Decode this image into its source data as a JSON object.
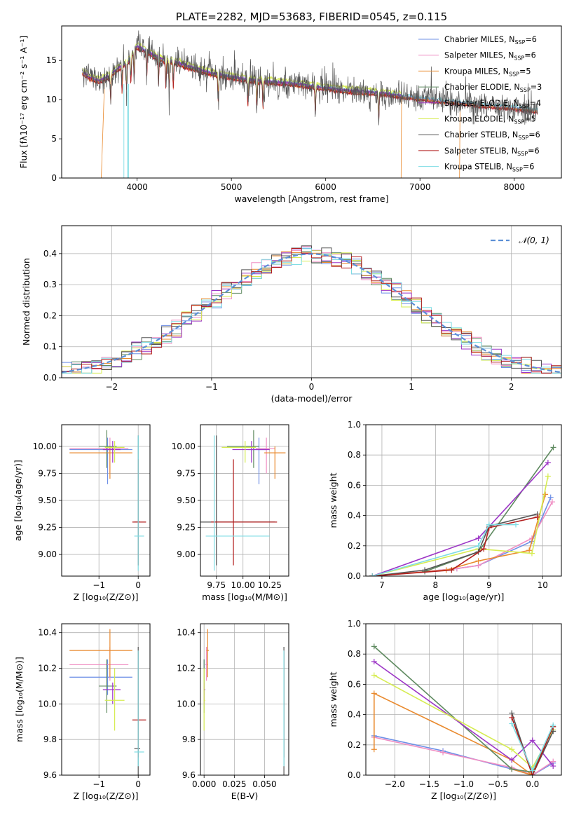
{
  "palette": {
    "Chabrier MILES": "#6d8fe6",
    "Salpeter MILES": "#f08ec3",
    "Kroupa MILES": "#e98a2e",
    "Chabrier ELODIE": "#5f8a60",
    "Salpeter ELODIE": "#9c35c6",
    "Kroupa ELODIE": "#d6ec52",
    "Chabrier STELIB": "#555555",
    "Salpeter STELIB": "#b21e1e",
    "Kroupa STELIB": "#7fdde4"
  },
  "chart_data": [
    {
      "id": "spectrum",
      "type": "line",
      "title": "PLATE=2282, MJD=53683, FIBERID=0545, z=0.115",
      "xlabel": "wavelength [Angstrom, rest frame]",
      "ylabel": "Flux [fλ10⁻¹⁷ erg cm⁻² s⁻¹ A⁻¹]",
      "xlim": [
        3200,
        8500
      ],
      "ylim": [
        0,
        19.4
      ],
      "xticks": [
        "4000",
        "5000",
        "6000",
        "7000",
        "8000"
      ],
      "yticks": [
        "0",
        "5",
        "10",
        "15"
      ],
      "grid": false,
      "legend_position": "upper right",
      "continuum": [
        [
          3420,
          13.3
        ],
        [
          3500,
          12.6
        ],
        [
          3600,
          12.2
        ],
        [
          3700,
          12.8
        ],
        [
          3800,
          13.8
        ],
        [
          3900,
          14.6
        ],
        [
          4000,
          16.6
        ],
        [
          4100,
          16.0
        ],
        [
          4200,
          15.3
        ],
        [
          4300,
          14.8
        ],
        [
          4400,
          14.6
        ],
        [
          4500,
          14.2
        ],
        [
          4600,
          13.8
        ],
        [
          4700,
          13.5
        ],
        [
          4800,
          13.1
        ],
        [
          4900,
          12.9
        ],
        [
          5000,
          12.7
        ],
        [
          5100,
          12.5
        ],
        [
          5200,
          12.3
        ],
        [
          5300,
          12.2
        ],
        [
          5400,
          12.1
        ],
        [
          5500,
          12.0
        ],
        [
          5600,
          11.9
        ],
        [
          5800,
          11.6
        ],
        [
          6000,
          11.3
        ],
        [
          6200,
          11.0
        ],
        [
          6400,
          10.8
        ],
        [
          6600,
          10.6
        ],
        [
          6800,
          10.3
        ],
        [
          7000,
          10.0
        ],
        [
          7200,
          9.7
        ],
        [
          7400,
          9.5
        ],
        [
          7600,
          9.2
        ],
        [
          7800,
          9.0
        ],
        [
          8000,
          8.8
        ],
        [
          8200,
          8.5
        ],
        [
          8250,
          8.4
        ]
      ],
      "series": [
        {
          "name": "Chabrier MILES, N_SSP=6",
          "legend": [
            "Chabrier MILES, N",
            "SSP",
            "=6"
          ],
          "offset": 0.1,
          "start": 3420,
          "end": 8250
        },
        {
          "name": "Salpeter MILES, N_SSP=6",
          "legend": [
            "Salpeter MILES, N",
            "SSP",
            "=6"
          ],
          "offset": -0.05,
          "start": 3420,
          "end": 8250
        },
        {
          "name": "Kroupa MILES, N_SSP=5",
          "legend": [
            "Kroupa MILES, N",
            "SSP",
            "=5"
          ],
          "offset": 0.0,
          "start": 3420,
          "end": 8250
        },
        {
          "name": "Chabrier ELODIE, N_SSP=3",
          "legend": [
            "Chabrier ELODIE, N",
            "SSP",
            "=3"
          ],
          "offset": 0.2,
          "start": 3420,
          "end": 6800
        },
        {
          "name": "Salpeter ELODIE, N_SSP=4",
          "legend": [
            "Salpeter ELODIE, N",
            "SSP",
            "=4"
          ],
          "offset": 0.25,
          "start": 3420,
          "end": 6800
        },
        {
          "name": "Kroupa ELODIE, N_SSP=5",
          "legend": [
            "Kroupa ELODIE, N",
            "SSP",
            "=5"
          ],
          "offset": 0.6,
          "start": 3420,
          "end": 6800
        },
        {
          "name": "Chabrier STELIB, N_SSP=6",
          "legend": [
            "Chabrier STELIB, N",
            "SSP",
            "=6"
          ],
          "offset": 0.15,
          "start": 3420,
          "end": 8250
        },
        {
          "name": "Salpeter STELIB, N_SSP=6",
          "legend": [
            "Salpeter STELIB, N",
            "SSP",
            "=6"
          ],
          "offset": -0.1,
          "start": 3420,
          "end": 8250
        },
        {
          "name": "Kroupa STELIB, N_SSP=6",
          "legend": [
            "Kroupa STELIB, N",
            "SSP",
            "=6"
          ],
          "offset": 0.3,
          "start": 3420,
          "end": 8250
        }
      ]
    },
    {
      "id": "residuals",
      "type": "line",
      "xlabel": "(data-model)/error",
      "ylabel": "Normed distribution",
      "xlim": [
        -2.5,
        2.5
      ],
      "ylim": [
        0,
        0.49
      ],
      "xticks": [
        "−2",
        "−1",
        "0",
        "1",
        "2"
      ],
      "yticks": [
        "0.0",
        "0.1",
        "0.2",
        "0.3",
        "0.4"
      ],
      "grid": true,
      "legend_position": "upper right",
      "legend_label": "𝒩(0, 1)",
      "bin_width": 0.1,
      "reference_curve": "N(0,1)"
    },
    {
      "id": "age-vs-Z",
      "type": "scatter",
      "xlabel": "Z [log₁₀(Z/Z⊙)]",
      "ylabel": "age  [log₁₀(age/yr)]",
      "xlim": [
        -1.95,
        0.3
      ],
      "ylim": [
        8.8,
        10.2
      ],
      "xticks": [
        "−1",
        "0"
      ],
      "yticks": [
        "9.00",
        "9.25",
        "9.50",
        "9.75",
        "10.00"
      ],
      "grid": true
    },
    {
      "id": "age-vs-mass",
      "type": "scatter",
      "xlabel": "mass [log₁₀(M/M⊙)]",
      "xlim": [
        9.6,
        10.43
      ],
      "ylim": [
        8.8,
        10.2
      ],
      "xticks": [
        "9.75",
        "10.00",
        "10.25"
      ],
      "yticks": [
        "9.00",
        "9.25",
        "9.50",
        "9.75",
        "10.00"
      ],
      "grid": true
    },
    {
      "id": "weight-vs-age",
      "type": "line",
      "xlabel": "age  [log₁₀(age/yr)]",
      "ylabel": "mass weight",
      "xlim": [
        6.7,
        10.35
      ],
      "ylim": [
        0,
        1.0
      ],
      "xticks": [
        "7",
        "8",
        "9",
        "10"
      ],
      "yticks": [
        "0.0",
        "0.2",
        "0.4",
        "0.6",
        "0.8",
        "1.0"
      ],
      "grid": true
    },
    {
      "id": "mass-vs-Z",
      "type": "scatter",
      "xlabel": "Z [log₁₀(Z/Z⊙)]",
      "ylabel": "mass [log₁₀(M/M⊙)]",
      "xlim": [
        -1.95,
        0.3
      ],
      "ylim": [
        9.6,
        10.45
      ],
      "xticks": [
        "−1",
        "0"
      ],
      "yticks": [
        "9.6",
        "9.8",
        "10.0",
        "10.2",
        "10.4"
      ],
      "grid": true
    },
    {
      "id": "mass-vs-EBV",
      "type": "scatter",
      "xlabel": "E(B-V)",
      "xlim": [
        -0.003,
        0.07
      ],
      "ylim": [
        9.6,
        10.45
      ],
      "xticks": [
        "0.000",
        "0.025",
        "0.050"
      ],
      "yticks": [
        "9.6",
        "9.8",
        "10.0",
        "10.2",
        "10.4"
      ],
      "grid": true
    },
    {
      "id": "weight-vs-Z",
      "type": "line",
      "xlabel": "Z [log₁₀(Z/Z⊙)]",
      "ylabel": "mass weight",
      "xlim": [
        -2.42,
        0.42
      ],
      "ylim": [
        0,
        1.0
      ],
      "xticks": [
        "−2.0",
        "−1.5",
        "−1.0",
        "−0.5",
        "0.0"
      ],
      "yticks": [
        "0.0",
        "0.2",
        "0.4",
        "0.6",
        "0.8",
        "1.0"
      ],
      "grid": true
    }
  ],
  "fits": [
    {
      "model": "Chabrier MILES",
      "Z": -0.78,
      "Zlo": -1.75,
      "Zhi": -0.15,
      "age": 9.97,
      "agelo": 9.65,
      "agehi": 10.08,
      "mass": 10.15,
      "masslo": 10.05,
      "masshi": 10.22,
      "mlo": 10.05,
      "mhi": 10.25,
      "ebv": 0.0,
      "ebvlo": 0.0,
      "ebvhi": 0.0,
      "ages": [
        6.82,
        7.8,
        8.4,
        8.8,
        9.8,
        10.15
      ],
      "weights": [
        0.0,
        0.03,
        0.05,
        0.07,
        0.23,
        0.52
      ],
      "zw": [
        [
          -2.3,
          0.26
        ],
        [
          -1.3,
          0.16
        ],
        [
          -0.3,
          0.04
        ],
        [
          0.0,
          0.0
        ],
        [
          0.3,
          0.08
        ]
      ]
    },
    {
      "model": "Salpeter MILES",
      "Z": -0.72,
      "Zlo": -1.75,
      "Zhi": -0.25,
      "age": 9.98,
      "agelo": 9.75,
      "agehi": 10.08,
      "mass": 10.22,
      "masslo": 10.12,
      "masshi": 10.3,
      "mlo": 10.13,
      "mhi": 10.32,
      "ebv": 0.002,
      "ebvlo": 0.001,
      "ebvhi": 0.003,
      "ages": [
        6.82,
        7.8,
        8.4,
        8.8,
        9.8,
        10.18
      ],
      "weights": [
        0.0,
        0.03,
        0.05,
        0.07,
        0.25,
        0.49
      ],
      "zw": [
        [
          -2.3,
          0.25
        ],
        [
          -1.3,
          0.15
        ],
        [
          -0.3,
          0.05
        ],
        [
          0.0,
          0.0
        ],
        [
          0.3,
          0.09
        ]
      ]
    },
    {
      "model": "Kroupa MILES",
      "Z": -0.72,
      "Zlo": -1.75,
      "Zhi": -0.15,
      "age": 9.94,
      "agelo": 9.7,
      "agehi": 10.0,
      "mass": 10.3,
      "masslo": 10.2,
      "masshi": 10.4,
      "mlo": 10.15,
      "mhi": 10.42,
      "ebv": 0.003,
      "ebvlo": 0.002,
      "ebvhi": 0.004,
      "ages": [
        6.82,
        8.2,
        8.8,
        9.75,
        10.05
      ],
      "weights": [
        0.0,
        0.04,
        0.1,
        0.17,
        0.54
      ],
      "zw": [
        [
          -2.3,
          0.17
        ],
        [
          -2.3,
          0.54
        ],
        [
          -0.3,
          0.1
        ],
        [
          0.0,
          0.0
        ],
        [
          -0.3,
          0.04
        ]
      ]
    },
    {
      "model": "Chabrier ELODIE",
      "Z": -0.8,
      "Zlo": -1.0,
      "Zhi": -0.55,
      "age": 10.0,
      "agelo": 9.8,
      "agehi": 10.15,
      "mass": 10.1,
      "masslo": 9.85,
      "masshi": 10.15,
      "mlo": 9.95,
      "mhi": 10.25,
      "ebv": 0.0,
      "ebvlo": 0.0,
      "ebvhi": 0.0,
      "ages": [
        7.8,
        8.8,
        10.2
      ],
      "weights": [
        0.03,
        0.16,
        0.85
      ],
      "zw": [
        [
          -2.3,
          0.85
        ],
        [
          -0.3,
          0.04
        ],
        [
          0.0,
          0.02
        ],
        [
          0.3,
          0.32
        ]
      ]
    },
    {
      "model": "Salpeter ELODIE",
      "Z": -0.65,
      "Zlo": -0.9,
      "Zhi": -0.45,
      "age": 9.97,
      "agelo": 9.85,
      "agehi": 10.05,
      "mass": 10.08,
      "masslo": 9.9,
      "masshi": 10.25,
      "mlo": 10.0,
      "mhi": 10.12,
      "ebv": 0.0,
      "ebvlo": 0.0,
      "ebvhi": 0.001,
      "ages": [
        6.82,
        8.8,
        10.1
      ],
      "weights": [
        0.0,
        0.25,
        0.75
      ],
      "zw": [
        [
          -2.3,
          0.75
        ],
        [
          -0.3,
          0.1
        ],
        [
          0.0,
          0.23
        ],
        [
          0.3,
          0.06
        ]
      ]
    },
    {
      "model": "Kroupa ELODIE",
      "Z": -0.6,
      "Zlo": -0.85,
      "Zhi": -0.35,
      "age": 9.99,
      "agelo": 9.85,
      "agehi": 10.05,
      "mass": 10.02,
      "masslo": 9.8,
      "masshi": 10.12,
      "mlo": 9.85,
      "mhi": 10.2,
      "ebv": 0.0,
      "ebvlo": 0.0,
      "ebvhi": 0.001,
      "ages": [
        6.82,
        8.8,
        9.8,
        10.1
      ],
      "weights": [
        0.0,
        0.18,
        0.15,
        0.66
      ],
      "zw": [
        [
          -2.3,
          0.66
        ],
        [
          -0.3,
          0.17
        ],
        [
          0.0,
          0.05
        ],
        [
          0.3,
          0.3
        ]
      ]
    },
    {
      "model": "Chabrier STELIB",
      "Z": 0.0,
      "Zlo": -0.1,
      "Zhi": 0.05,
      "age": 9.3,
      "agelo": 8.9,
      "agehi": 10.1,
      "mass": 9.75,
      "masslo": 9.6,
      "masshi": 10.3,
      "mlo": 9.6,
      "mhi": 10.32,
      "ebv": 0.066,
      "ebvlo": 0.066,
      "ebvhi": 0.066,
      "ages": [
        6.82,
        7.8,
        8.8,
        9.0,
        9.9
      ],
      "weights": [
        0.0,
        0.04,
        0.16,
        0.33,
        0.41
      ],
      "zw": [
        [
          -0.3,
          0.41
        ],
        [
          0.0,
          0.0
        ],
        [
          0.3,
          0.29
        ]
      ]
    },
    {
      "model": "Salpeter STELIB",
      "Z": 0.0,
      "Zlo": -0.15,
      "Zhi": 0.2,
      "age": 9.3,
      "agelo": 8.9,
      "agehi": 9.88,
      "mass": 9.91,
      "masslo": 9.7,
      "masshi": 10.32,
      "mlo": 9.7,
      "mhi": 10.3,
      "ebv": 0.066,
      "ebvlo": 0.066,
      "ebvhi": 0.066,
      "ages": [
        6.82,
        8.3,
        8.9,
        9.0,
        9.9
      ],
      "weights": [
        0.0,
        0.04,
        0.18,
        0.32,
        0.39
      ],
      "zw": [
        [
          -0.3,
          0.38
        ],
        [
          0.0,
          0.0
        ],
        [
          0.3,
          0.32
        ]
      ]
    },
    {
      "model": "Kroupa STELIB",
      "Z": 0.0,
      "Zlo": -0.1,
      "Zhi": 0.15,
      "age": 9.17,
      "agelo": 8.85,
      "agehi": 10.1,
      "mass": 9.73,
      "masslo": 9.65,
      "masshi": 10.25,
      "mlo": 9.65,
      "mhi": 10.3,
      "ebv": 0.066,
      "ebvlo": 0.066,
      "ebvhi": 0.066,
      "ages": [
        6.82,
        8.8,
        9.0,
        9.5
      ],
      "weights": [
        0.0,
        0.2,
        0.34,
        0.34
      ],
      "zw": [
        [
          -0.3,
          0.34
        ],
        [
          0.0,
          0.03
        ],
        [
          0.3,
          0.33
        ]
      ]
    }
  ]
}
